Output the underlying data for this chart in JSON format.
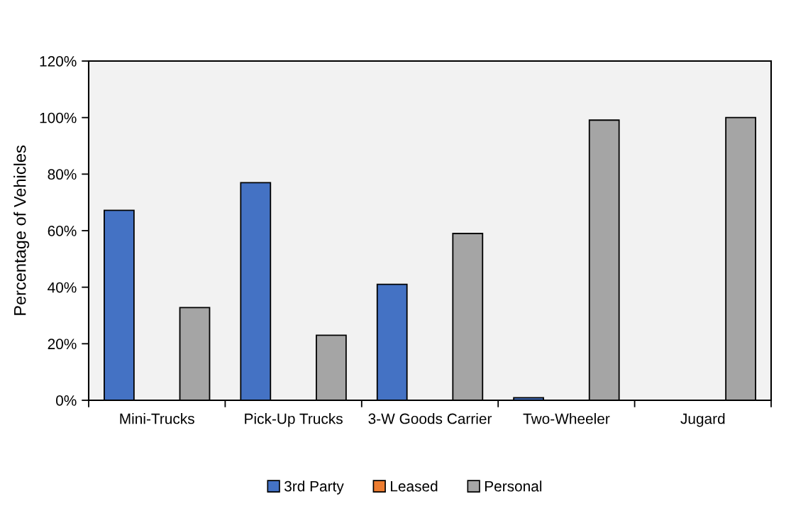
{
  "chart_data": {
    "type": "bar",
    "categories": [
      "Mini-Trucks",
      "Pick-Up Trucks",
      "3-W Goods Carrier",
      "Two-Wheeler",
      "Jugard"
    ],
    "series": [
      {
        "name": "3rd Party",
        "color": "#4472c4",
        "values": [
          67.2,
          77.0,
          41.0,
          0.9,
          0
        ]
      },
      {
        "name": "Leased",
        "color": "#ed7d31",
        "values": [
          0,
          0,
          0,
          0,
          0
        ]
      },
      {
        "name": "Personal",
        "color": "#a5a5a5",
        "values": [
          32.8,
          23.0,
          59.0,
          99.1,
          100
        ]
      }
    ],
    "ylabel": "Percentage of Vehicles",
    "ylim": [
      0,
      120
    ],
    "yticks": [
      {
        "value": 0,
        "label": "0%"
      },
      {
        "value": 20,
        "label": "20%"
      },
      {
        "value": 40,
        "label": "40%"
      },
      {
        "value": 60,
        "label": "60%"
      },
      {
        "value": 80,
        "label": "80%"
      },
      {
        "value": 100,
        "label": "100%"
      },
      {
        "value": 120,
        "label": "120%"
      }
    ],
    "legend": "bottom",
    "grid": false
  }
}
